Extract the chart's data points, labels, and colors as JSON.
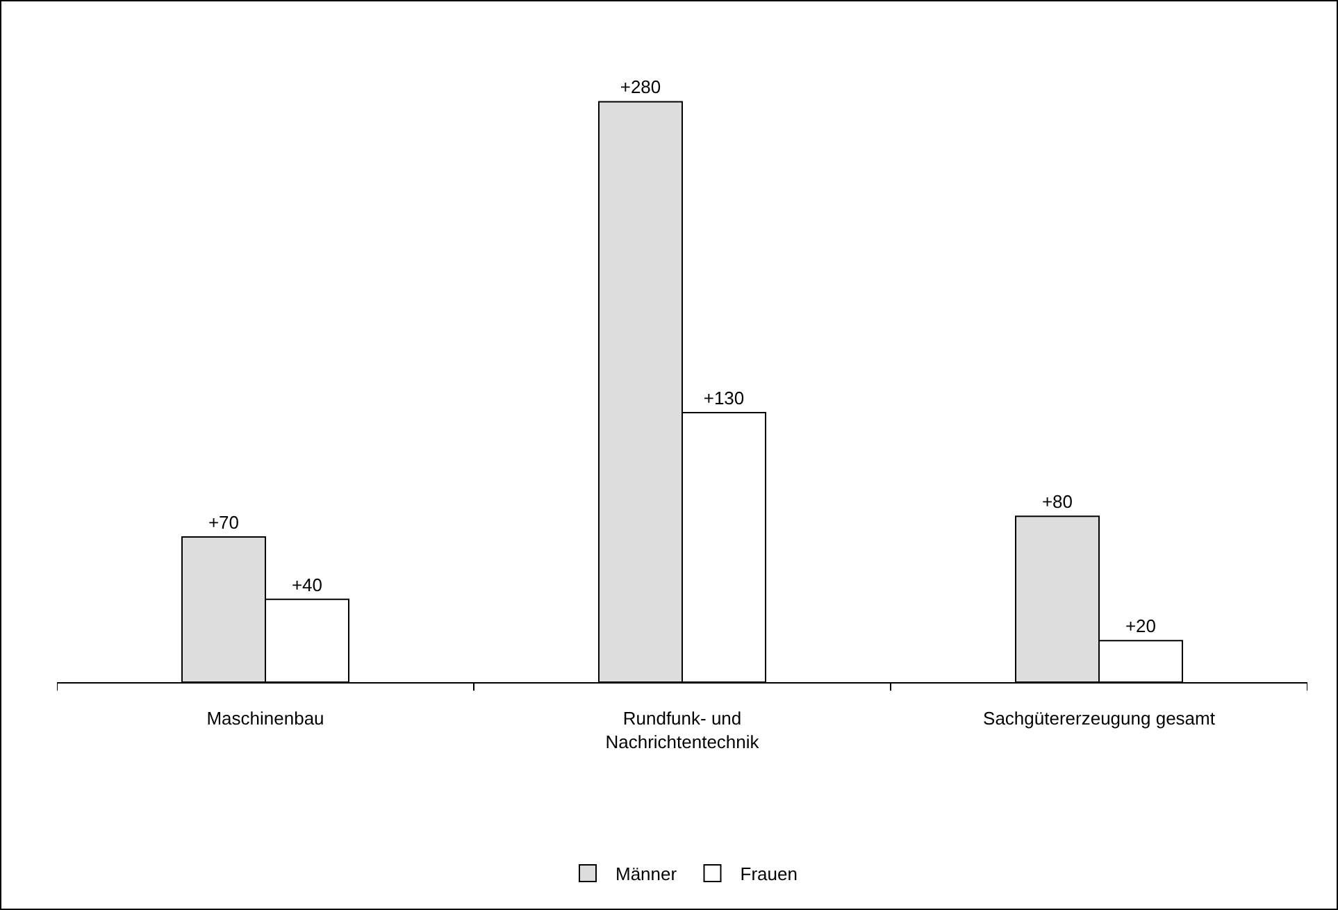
{
  "chart_data": {
    "type": "bar",
    "categories": [
      "Maschinenbau",
      "Rundfunk- und Nachrichtentechnik",
      "Sachgütererzeugung gesamt"
    ],
    "series": [
      {
        "name": "Männer",
        "color": "#dddddd",
        "values": [
          70,
          280,
          80
        ],
        "value_labels": [
          "+70",
          "+280",
          "+80"
        ]
      },
      {
        "name": "Frauen",
        "color": "#ffffff",
        "values": [
          40,
          130,
          20
        ],
        "value_labels": [
          "+40",
          "+130",
          "+20"
        ]
      }
    ],
    "legend": "bottom"
  }
}
